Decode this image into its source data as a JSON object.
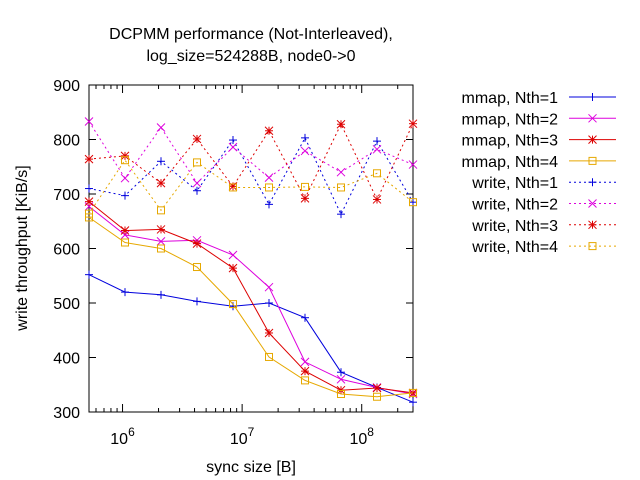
{
  "chart_data": {
    "type": "line",
    "title": "DCPMM performance (Not-Interleaved),",
    "subtitle": "log_size=524288B, node0->0",
    "xlabel": "sync size [B]",
    "ylabel": "write throughput [KiB/s]",
    "xscale": "log",
    "xlim": [
      524288,
      268435456
    ],
    "ylim": [
      300,
      900
    ],
    "yticks": [
      "300",
      "400",
      "500",
      "600",
      "700",
      "800",
      "900"
    ],
    "xticks": [
      {
        "value": 1000000,
        "base": "10",
        "exp": "6"
      },
      {
        "value": 10000000,
        "base": "10",
        "exp": "7"
      },
      {
        "value": 100000000,
        "base": "10",
        "exp": "8"
      }
    ],
    "grid": false,
    "legend_position": "right, outside",
    "x": [
      524288,
      1048576,
      2097152,
      4194304,
      8388608,
      16777216,
      33554432,
      67108864,
      134217728,
      268435456
    ],
    "series": [
      {
        "name": "mmap, Nth=1",
        "color": "#0000dd",
        "dash": false,
        "marker": "plus",
        "values": [
          552,
          520,
          515,
          503,
          494,
          500,
          473,
          373,
          345,
          318
        ]
      },
      {
        "name": "mmap, Nth=2",
        "color": "#dd00dd",
        "dash": false,
        "marker": "cross",
        "values": [
          677,
          625,
          613,
          615,
          588,
          529,
          392,
          360,
          345,
          333
        ]
      },
      {
        "name": "mmap, Nth=3",
        "color": "#dd0000",
        "dash": false,
        "marker": "star",
        "values": [
          686,
          633,
          635,
          609,
          564,
          445,
          375,
          340,
          344,
          335
        ]
      },
      {
        "name": "mmap, Nth=4",
        "color": "#e6a800",
        "dash": false,
        "marker": "square",
        "values": [
          657,
          611,
          600,
          566,
          498,
          401,
          358,
          333,
          328,
          335
        ]
      },
      {
        "name": "write, Nth=1",
        "color": "#0000dd",
        "dash": true,
        "marker": "plus",
        "values": [
          710,
          697,
          760,
          706,
          799,
          681,
          803,
          663,
          797,
          685
        ]
      },
      {
        "name": "write, Nth=2",
        "color": "#dd00dd",
        "dash": true,
        "marker": "cross",
        "values": [
          833,
          729,
          822,
          720,
          786,
          730,
          779,
          740,
          782,
          754
        ]
      },
      {
        "name": "write, Nth=3",
        "color": "#dd0000",
        "dash": true,
        "marker": "star",
        "values": [
          764,
          770,
          720,
          801,
          714,
          816,
          692,
          828,
          690,
          829
        ]
      },
      {
        "name": "write, Nth=4",
        "color": "#e6a800",
        "dash": true,
        "marker": "square",
        "values": [
          664,
          762,
          670,
          758,
          712,
          712,
          713,
          712,
          738,
          685
        ]
      }
    ]
  }
}
